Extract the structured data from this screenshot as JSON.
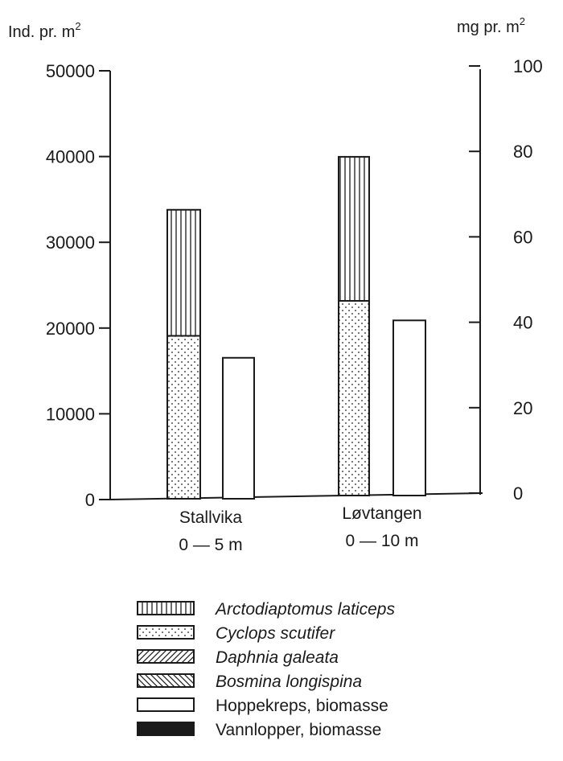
{
  "chart_data": {
    "type": "bar",
    "stacked": true,
    "left_axis": {
      "label": "Ind. pr. m",
      "label_sup": "2",
      "range": [
        0,
        50000
      ],
      "ticks": [
        "0",
        "10000",
        "20000",
        "30000",
        "40000",
        "50000"
      ]
    },
    "right_axis": {
      "label": "mg pr. m",
      "label_sup": "2",
      "range": [
        0,
        100
      ],
      "ticks": [
        "0",
        "20",
        "40",
        "60",
        "80",
        "100"
      ]
    },
    "categories": [
      {
        "line1": "Stallvika",
        "line2": "0 — 5 m"
      },
      {
        "line1": "Løvtangen",
        "line2": "0 — 10 m"
      }
    ],
    "series": [
      {
        "name": "Arctodiaptomus laticeps",
        "axis": "left",
        "pattern": "vertical-lines",
        "values": [
          14700,
          16800
        ]
      },
      {
        "name": "Cyclops scutifer",
        "axis": "left",
        "pattern": "dots",
        "values": [
          19000,
          22700
        ]
      },
      {
        "name": "Daphnia galeata",
        "axis": "left",
        "pattern": "diagonal-up",
        "values": [
          0,
          0
        ]
      },
      {
        "name": "Bosmina longispina",
        "axis": "left",
        "pattern": "diagonal-down",
        "values": [
          0,
          0
        ]
      },
      {
        "name": "Hoppekreps, biomasse",
        "axis": "right",
        "pattern": "empty",
        "values": [
          33,
          41
        ]
      },
      {
        "name": "Vannlopper, biomasse",
        "axis": "right",
        "pattern": "solid",
        "values": [
          0,
          0
        ]
      }
    ],
    "legend": {
      "placement": "bottom",
      "items": [
        {
          "label": "Arctodiaptomus laticeps",
          "italic": true,
          "pattern": "vertical-lines"
        },
        {
          "label": "Cyclops scutifer",
          "italic": true,
          "pattern": "dots"
        },
        {
          "label": "Daphnia galeata",
          "italic": true,
          "pattern": "diagonal-up"
        },
        {
          "label": "Bosmina longispina",
          "italic": true,
          "pattern": "diagonal-down"
        },
        {
          "label": "Hoppekreps, biomasse",
          "italic": false,
          "pattern": "empty"
        },
        {
          "label": "Vannlopper, biomasse",
          "italic": false,
          "pattern": "solid"
        }
      ]
    },
    "grid": false
  }
}
